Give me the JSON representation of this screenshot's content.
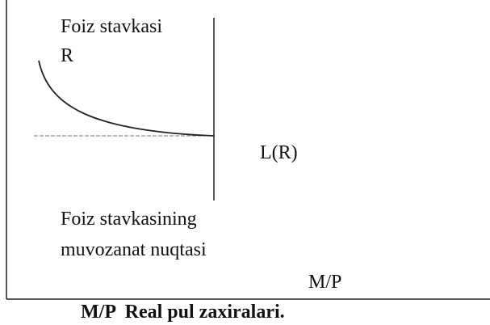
{
  "axis_label_y": "Foiz stavkasi",
  "axis_symbol_y": "R",
  "curve_label": "L(R)",
  "equilibrium_label": [
    "Foiz stavkasining",
    "muvozanat nuqtasi"
  ],
  "axis_label_x": "M/P",
  "caption": "M/P  Real pul zaxiralari."
}
